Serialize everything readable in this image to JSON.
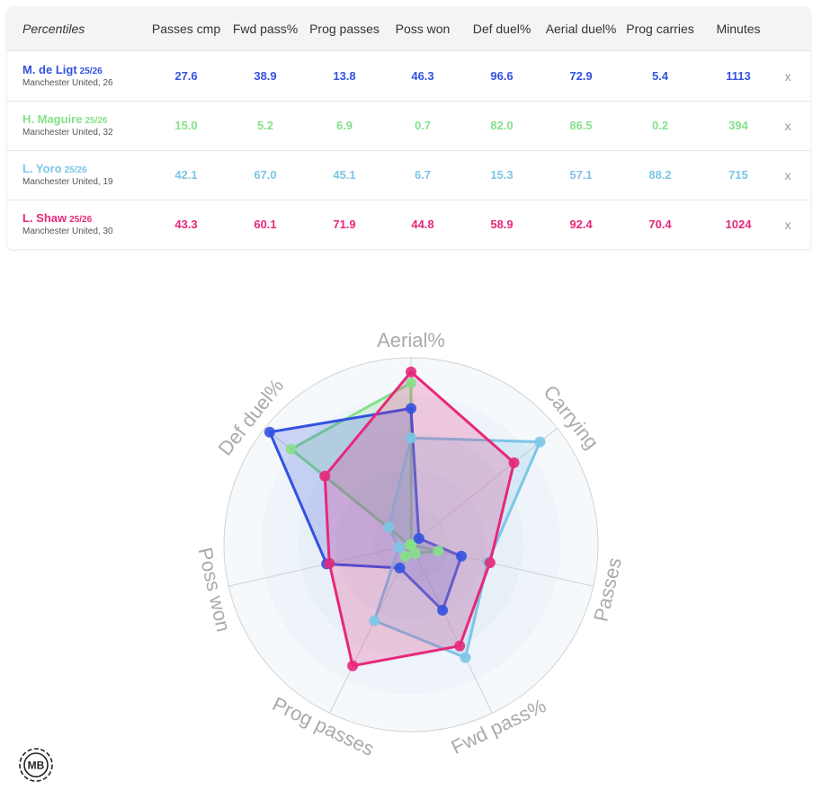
{
  "table": {
    "corner_label": "Percentiles",
    "columns": [
      "Passes cmp",
      "Fwd pass%",
      "Prog passes",
      "Poss won",
      "Def duel%",
      "Aerial duel%",
      "Prog carries",
      "Minutes"
    ],
    "remove_label": "x",
    "rows": [
      {
        "name": "M. de Ligt",
        "season": "25/26",
        "team": "Manchester United, 26",
        "color": "#3352e0",
        "values": [
          "27.6",
          "38.9",
          "13.8",
          "46.3",
          "96.6",
          "72.9",
          "5.4",
          "1113"
        ]
      },
      {
        "name": "H. Maguire",
        "season": "25/26",
        "team": "Manchester United, 32",
        "color": "#86e08a",
        "values": [
          "15.0",
          "5.2",
          "6.9",
          "0.7",
          "82.0",
          "86.5",
          "0.2",
          "394"
        ]
      },
      {
        "name": "L. Yoro",
        "season": "25/26",
        "team": "Manchester United, 19",
        "color": "#7cc6e6",
        "values": [
          "42.1",
          "67.0",
          "45.1",
          "6.7",
          "15.3",
          "57.1",
          "88.2",
          "715"
        ]
      },
      {
        "name": "L. Shaw",
        "season": "25/26",
        "team": "Manchester United, 30",
        "color": "#e6287a",
        "values": [
          "43.3",
          "60.1",
          "71.9",
          "44.8",
          "58.9",
          "92.4",
          "70.4",
          "1024"
        ]
      }
    ]
  },
  "chart_data": {
    "type": "radar",
    "axes": [
      "Aerial%",
      "Carrying",
      "Passes",
      "Fwd pass%",
      "Prog passes",
      "Poss won",
      "Def duel%"
    ],
    "range": [
      0,
      100
    ],
    "series": [
      {
        "name": "M. de Ligt",
        "color": "#3352e0",
        "values": [
          72.9,
          5.4,
          27.6,
          38.9,
          13.8,
          46.3,
          96.6
        ]
      },
      {
        "name": "H. Maguire",
        "color": "#86e08a",
        "values": [
          86.5,
          0.2,
          15.0,
          5.2,
          6.9,
          0.7,
          82.0
        ]
      },
      {
        "name": "L. Yoro",
        "color": "#7cc6e6",
        "values": [
          57.1,
          88.2,
          42.1,
          67.0,
          45.1,
          6.7,
          15.3
        ]
      },
      {
        "name": "L. Shaw",
        "color": "#e6287a",
        "values": [
          92.4,
          70.4,
          43.3,
          60.1,
          71.9,
          44.8,
          58.9
        ]
      }
    ]
  },
  "logo": {
    "text": "MB"
  }
}
